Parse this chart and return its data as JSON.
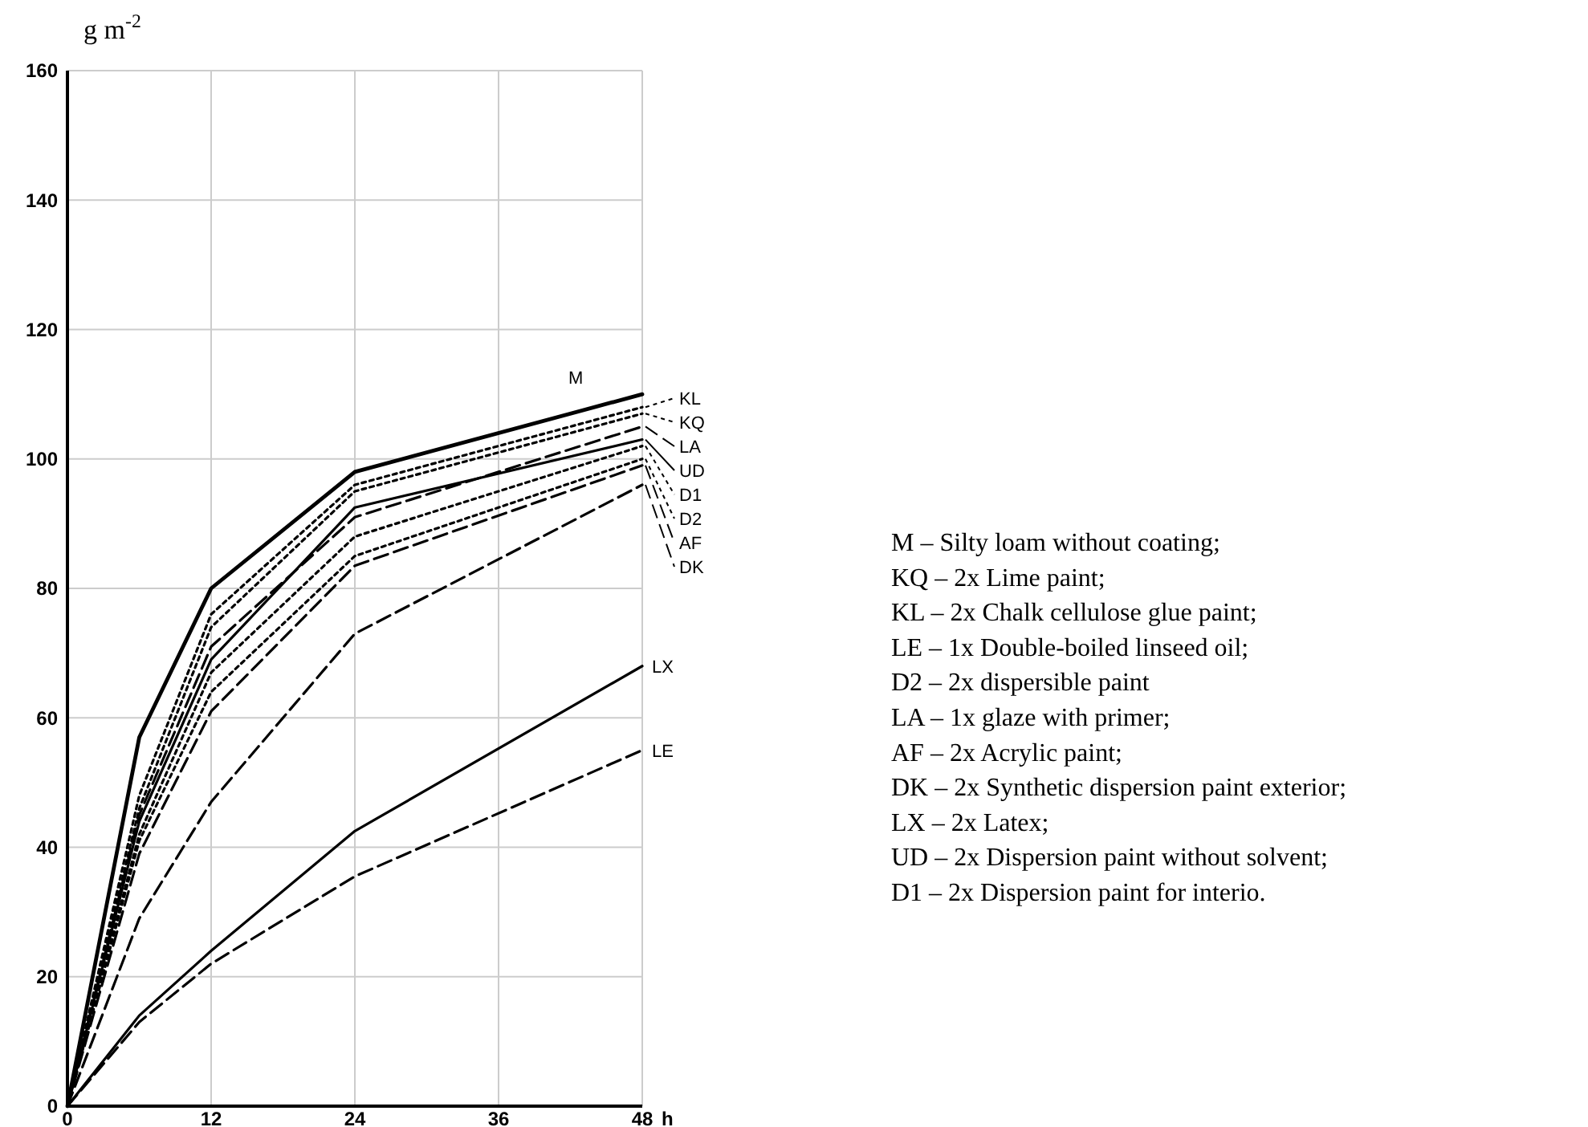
{
  "chart_data": {
    "type": "line",
    "ylabel": "g m$^{-2}$",
    "xlabel": "h",
    "x": [
      0,
      6,
      12,
      24,
      48
    ],
    "xlim": [
      0,
      48
    ],
    "xticks": [
      0,
      12,
      24,
      36,
      48
    ],
    "ylim": [
      0,
      160
    ],
    "yticks": [
      0,
      20,
      40,
      60,
      80,
      100,
      120,
      140,
      160
    ],
    "grid": true,
    "legend": "right",
    "marker": "none",
    "series": [
      {
        "name": "M",
        "color": "#000000",
        "line_style": "solid",
        "values": [
          0,
          57,
          80,
          98,
          110
        ]
      },
      {
        "name": "KL",
        "color": "#000000",
        "line_style": "dotted",
        "values": [
          0,
          48,
          76,
          96,
          108
        ]
      },
      {
        "name": "KQ",
        "color": "#000000",
        "line_style": "dotted",
        "values": [
          0,
          46,
          74,
          95,
          107
        ]
      },
      {
        "name": "LA",
        "color": "#000000",
        "line_style": "dashed",
        "values": [
          0,
          45,
          71,
          91,
          105
        ]
      },
      {
        "name": "UD",
        "color": "#000000",
        "line_style": "solid",
        "values": [
          0,
          44,
          69,
          92.5,
          103
        ]
      },
      {
        "name": "D1",
        "color": "#000000",
        "line_style": "dotted",
        "values": [
          0,
          42,
          67,
          88,
          102
        ]
      },
      {
        "name": "D2",
        "color": "#000000",
        "line_style": "dotted",
        "values": [
          0,
          41,
          64,
          85,
          100
        ]
      },
      {
        "name": "AF",
        "color": "#000000",
        "line_style": "dashed",
        "values": [
          0,
          39,
          61,
          83.5,
          99
        ]
      },
      {
        "name": "DK",
        "color": "#000000",
        "line_style": "dashed",
        "values": [
          0,
          29,
          47,
          73,
          96
        ]
      },
      {
        "name": "LX",
        "color": "#000000",
        "line_style": "solid",
        "values": [
          0,
          14,
          24,
          42.5,
          68
        ]
      },
      {
        "name": "LE",
        "color": "#000000",
        "line_style": "dashed",
        "values": [
          0,
          13,
          22,
          35.5,
          55
        ]
      }
    ],
    "annotations": [
      "M – Silty loam without coating;",
      "KQ – 2x Lime paint;",
      "KL – 2x Chalk cellulose glue paint;",
      "LE – 1x Double-boiled linseed oil;",
      "D2 – 2x dispersible paint",
      "LA – 1x glaze with primer;",
      "AF – 2x Acrylic paint;",
      "DK – 2x Synthetic dispersion paint exterior;",
      "LX – 2x Latex;",
      "UD – 2x Dispersion paint without solvent;",
      "D1 – 2x Dispersion paint for interio."
    ]
  }
}
